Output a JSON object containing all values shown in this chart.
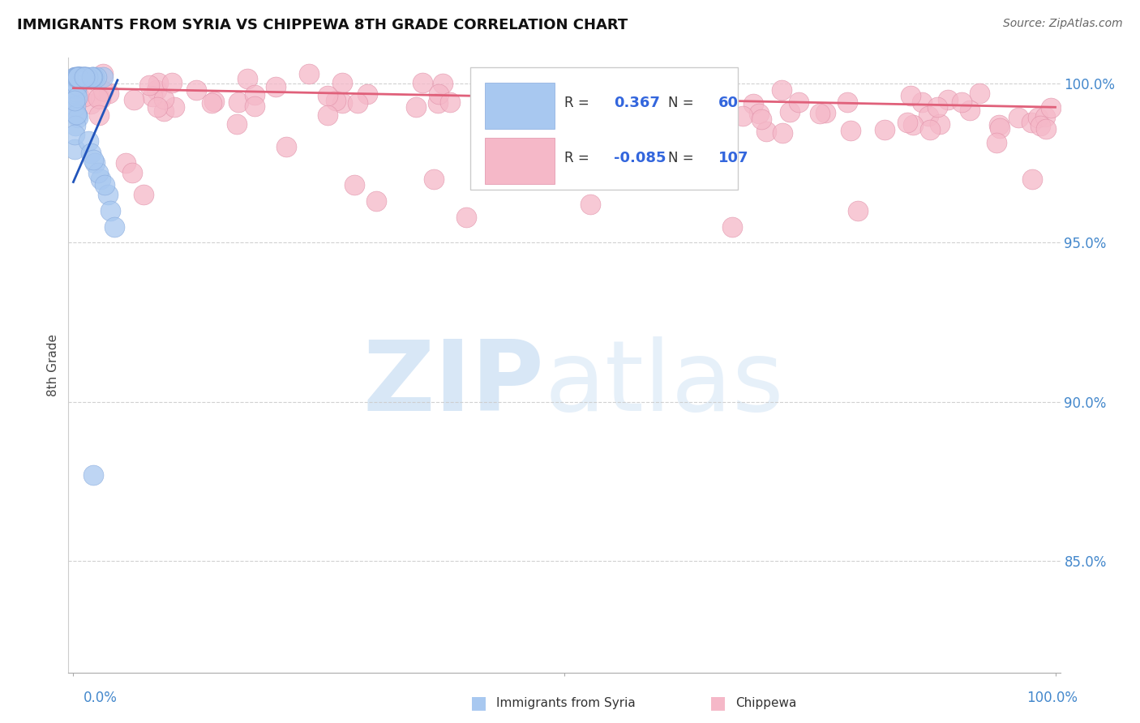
{
  "title": "IMMIGRANTS FROM SYRIA VS CHIPPEWA 8TH GRADE CORRELATION CHART",
  "source": "Source: ZipAtlas.com",
  "ylabel": "8th Grade",
  "blue_r": "0.367",
  "blue_n": "60",
  "pink_r": "-0.085",
  "pink_n": "107",
  "blue_color": "#a8c8f0",
  "blue_edge_color": "#88aadd",
  "blue_line_color": "#2255bb",
  "pink_color": "#f5b8c8",
  "pink_edge_color": "#e090a8",
  "pink_line_color": "#e0607a",
  "background_color": "#ffffff",
  "grid_color": "#cccccc",
  "yaxis_labels": [
    "85.0%",
    "90.0%",
    "95.0%",
    "100.0%"
  ],
  "yaxis_values": [
    0.85,
    0.9,
    0.95,
    1.0
  ],
  "ylim_min": 0.815,
  "ylim_max": 1.008,
  "xlim_min": -0.005,
  "xlim_max": 1.005,
  "watermark_zip_color": "#b8d4f0",
  "watermark_atlas_color": "#b8d4f0"
}
